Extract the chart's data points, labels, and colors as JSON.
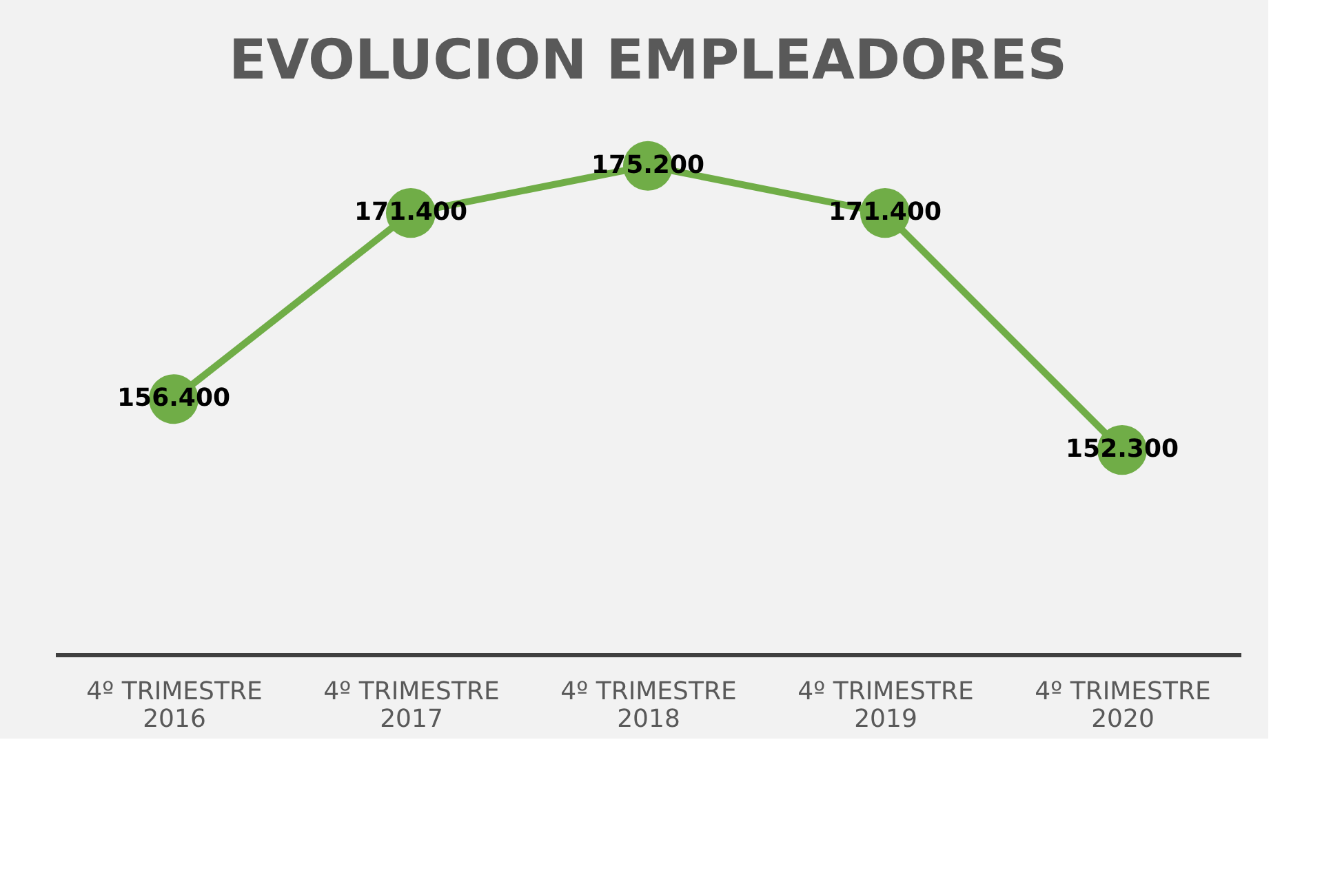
{
  "chart_data": {
    "type": "line",
    "title": "EVOLUCION EMPLEADORES",
    "categories": [
      "4º TRIMESTRE 2016",
      "4º TRIMESTRE 2017",
      "4º TRIMESTRE 2018",
      "4º TRIMESTRE 2019",
      "4º TRIMESTRE 2020"
    ],
    "series": [
      {
        "color": "#70ad47",
        "values": [
          156400,
          171400,
          175200,
          171400,
          152300
        ],
        "value_labels": [
          "156.400",
          "171.400",
          "175.200",
          "171.400",
          "152.300"
        ]
      }
    ],
    "marker": "circle",
    "line_style": "solid",
    "grid": false,
    "tick_labels": "x"
  }
}
